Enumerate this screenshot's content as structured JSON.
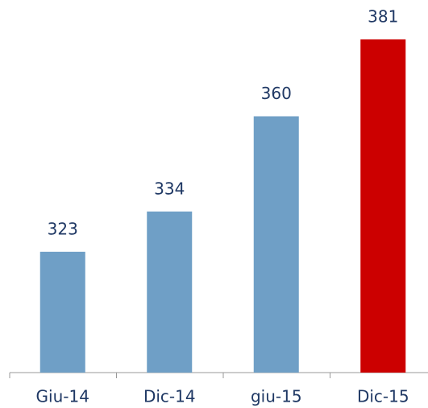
{
  "chart_data": {
    "type": "bar",
    "categories": [
      "Giu-14",
      "Dic-14",
      "giu-15",
      "Dic-15"
    ],
    "values": [
      323,
      334,
      360,
      381
    ],
    "colors": [
      "#6f9fc6",
      "#6f9fc6",
      "#6f9fc6",
      "#cc0000"
    ],
    "ylim": [
      290,
      390
    ]
  }
}
